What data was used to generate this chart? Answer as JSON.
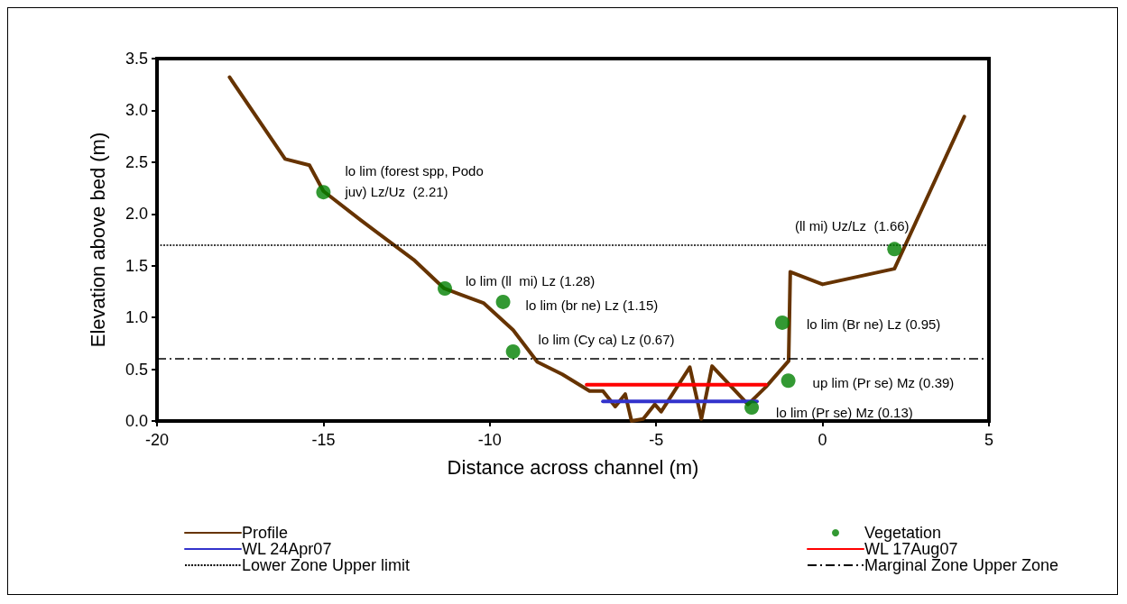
{
  "chart_data": {
    "type": "line",
    "xlabel": "Distance across channel (m)",
    "ylabel": "Elevation above bed (m)",
    "xlim": [
      -20,
      5
    ],
    "xticks": [
      -20,
      -15,
      -10,
      -5,
      0,
      5
    ],
    "ylim": [
      0,
      3.5
    ],
    "yticks": [
      {
        "value": 0,
        "label": "0.0"
      },
      {
        "value": 0.5,
        "label": "0.5"
      },
      {
        "value": 1,
        "label": "1.0"
      },
      {
        "value": 1.5,
        "label": "1.5"
      },
      {
        "value": 2,
        "label": "2.0"
      },
      {
        "value": 2.5,
        "label": "2.5"
      },
      {
        "value": 3,
        "label": "3.0"
      },
      {
        "value": 3.5,
        "label": "3.5"
      }
    ],
    "grid": false,
    "legend": "bottom",
    "series": [
      {
        "name": "Profile",
        "color": "#663300",
        "marker": "none",
        "x": [
          -17.82,
          -16.15,
          -15.42,
          -15.0,
          -13.88,
          -12.26,
          -11.37,
          -10.19,
          -9.3,
          -8.57,
          -7.82,
          -7.0,
          -6.6,
          -6.23,
          -5.93,
          -5.74,
          -5.39,
          -5.04,
          -4.85,
          -3.99,
          -3.64,
          -3.32,
          -2.24,
          -1.7,
          -1.02,
          -0.97,
          0.0,
          2.16,
          4.26
        ],
        "values": [
          3.32,
          2.53,
          2.47,
          2.22,
          1.94,
          1.55,
          1.28,
          1.14,
          0.88,
          0.57,
          0.45,
          0.29,
          0.29,
          0.14,
          0.26,
          0.0,
          0.02,
          0.16,
          0.09,
          0.52,
          0.02,
          0.53,
          0.16,
          0.33,
          0.58,
          1.44,
          1.32,
          1.47,
          2.94
        ]
      },
      {
        "name": "Vegetation",
        "type": "scatter",
        "color": "#008000",
        "marker": "circle",
        "x": [
          -15.0,
          -11.35,
          -9.6,
          -9.3,
          -2.13,
          -1.21,
          -1.03,
          2.16
        ],
        "values": [
          2.21,
          1.28,
          1.15,
          0.67,
          0.13,
          0.95,
          0.39,
          1.66
        ]
      },
      {
        "name": "WL 24Apr07",
        "color": "#3333cc",
        "marker": "none",
        "x": [
          -6.6,
          -1.97
        ],
        "values": [
          0.19,
          0.19
        ]
      },
      {
        "name": "WL 17Aug07",
        "color": "#ff0000",
        "marker": "none",
        "x": [
          -7.09,
          -1.7
        ],
        "values": [
          0.35,
          0.35
        ]
      }
    ],
    "ref_lines": [
      {
        "axis": "y",
        "value": 1.7,
        "label": "Lower Zone Upper limit",
        "color": "#000000",
        "line_style": "dotted"
      },
      {
        "axis": "y",
        "value": 0.6,
        "label": "Marginal Zone Upper Zone",
        "color": "#000000",
        "line_style": "dashdot"
      }
    ],
    "annotations": [
      {
        "text": "lo lim (forest spp, Podo\njuv) Lz/Uz  (2.21)",
        "x": -15.0,
        "y": 2.21
      },
      {
        "text": "lo lim (ll  mi) Lz (1.28)",
        "x": -11.35,
        "y": 1.28
      },
      {
        "text": "lo lim (br ne) Lz (1.15)",
        "x": -9.6,
        "y": 1.15
      },
      {
        "text": "lo lim (Cy ca) Lz (0.67)",
        "x": -9.3,
        "y": 0.67
      },
      {
        "text": "lo lim (Pr se) Mz (0.13)",
        "x": -2.13,
        "y": 0.13
      },
      {
        "text": "lo lim (Br ne) Lz (0.95)",
        "x": -1.21,
        "y": 0.95
      },
      {
        "text": "up lim (Pr se) Mz (0.39)",
        "x": -1.03,
        "y": 0.39
      },
      {
        "text": "(ll mi) Uz/Lz  (1.66)",
        "x": 2.16,
        "y": 1.66
      }
    ]
  }
}
